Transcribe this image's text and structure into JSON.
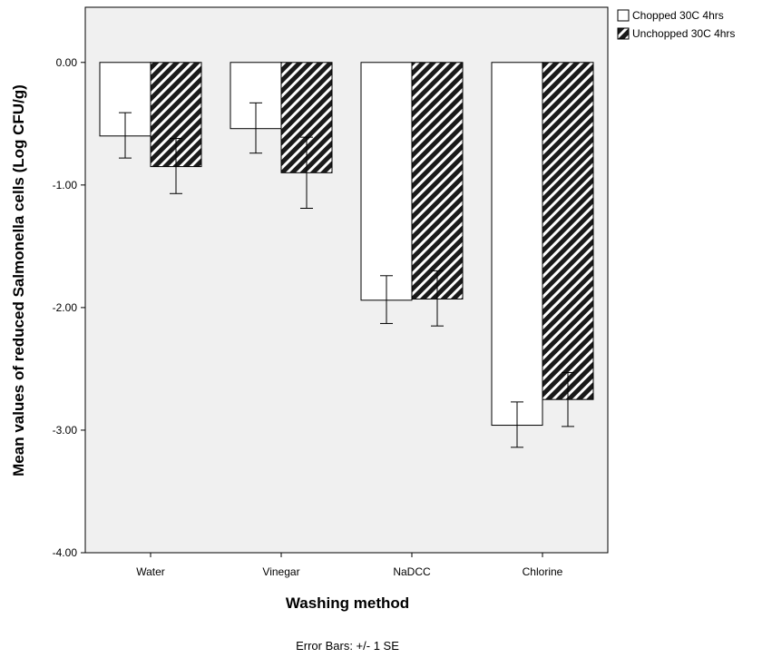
{
  "chart_data": {
    "type": "bar",
    "categories": [
      "Water",
      "Vinegar",
      "NaDCC",
      "Chlorine"
    ],
    "series": [
      {
        "name": "Chopped 30C 4hrs",
        "values": [
          -0.6,
          -0.54,
          -1.94,
          -2.96
        ],
        "error_low": [
          -0.78,
          -0.74,
          -2.13,
          -3.14
        ],
        "error_high": [
          -0.41,
          -0.33,
          -1.74,
          -2.77
        ],
        "color": "#ffffff",
        "pattern": "none"
      },
      {
        "name": "Unchopped 30C 4hrs",
        "values": [
          -0.85,
          -0.9,
          -1.93,
          -2.75
        ],
        "error_low": [
          -1.07,
          -1.19,
          -2.15,
          -2.97
        ],
        "error_high": [
          -0.62,
          -0.61,
          -1.7,
          -2.53
        ],
        "color": "#1a1a1a",
        "pattern": "diagonal-hatch"
      }
    ],
    "xlabel": "Washing method",
    "ylabel": "Mean values of reduced Salmonella cells (Log CFU/g)",
    "ylim": [
      -4.0,
      0.45
    ],
    "yticks": [
      0.0,
      -1.0,
      -2.0,
      -3.0,
      -4.0
    ],
    "ytick_labels": [
      "0.00",
      "-1.00",
      "-2.00",
      "-3.00",
      "-4.00"
    ],
    "footnote": "Error Bars: +/- 1 SE",
    "legend_position": "top-right",
    "plot_background": "#f0f0f0",
    "grid": false
  }
}
